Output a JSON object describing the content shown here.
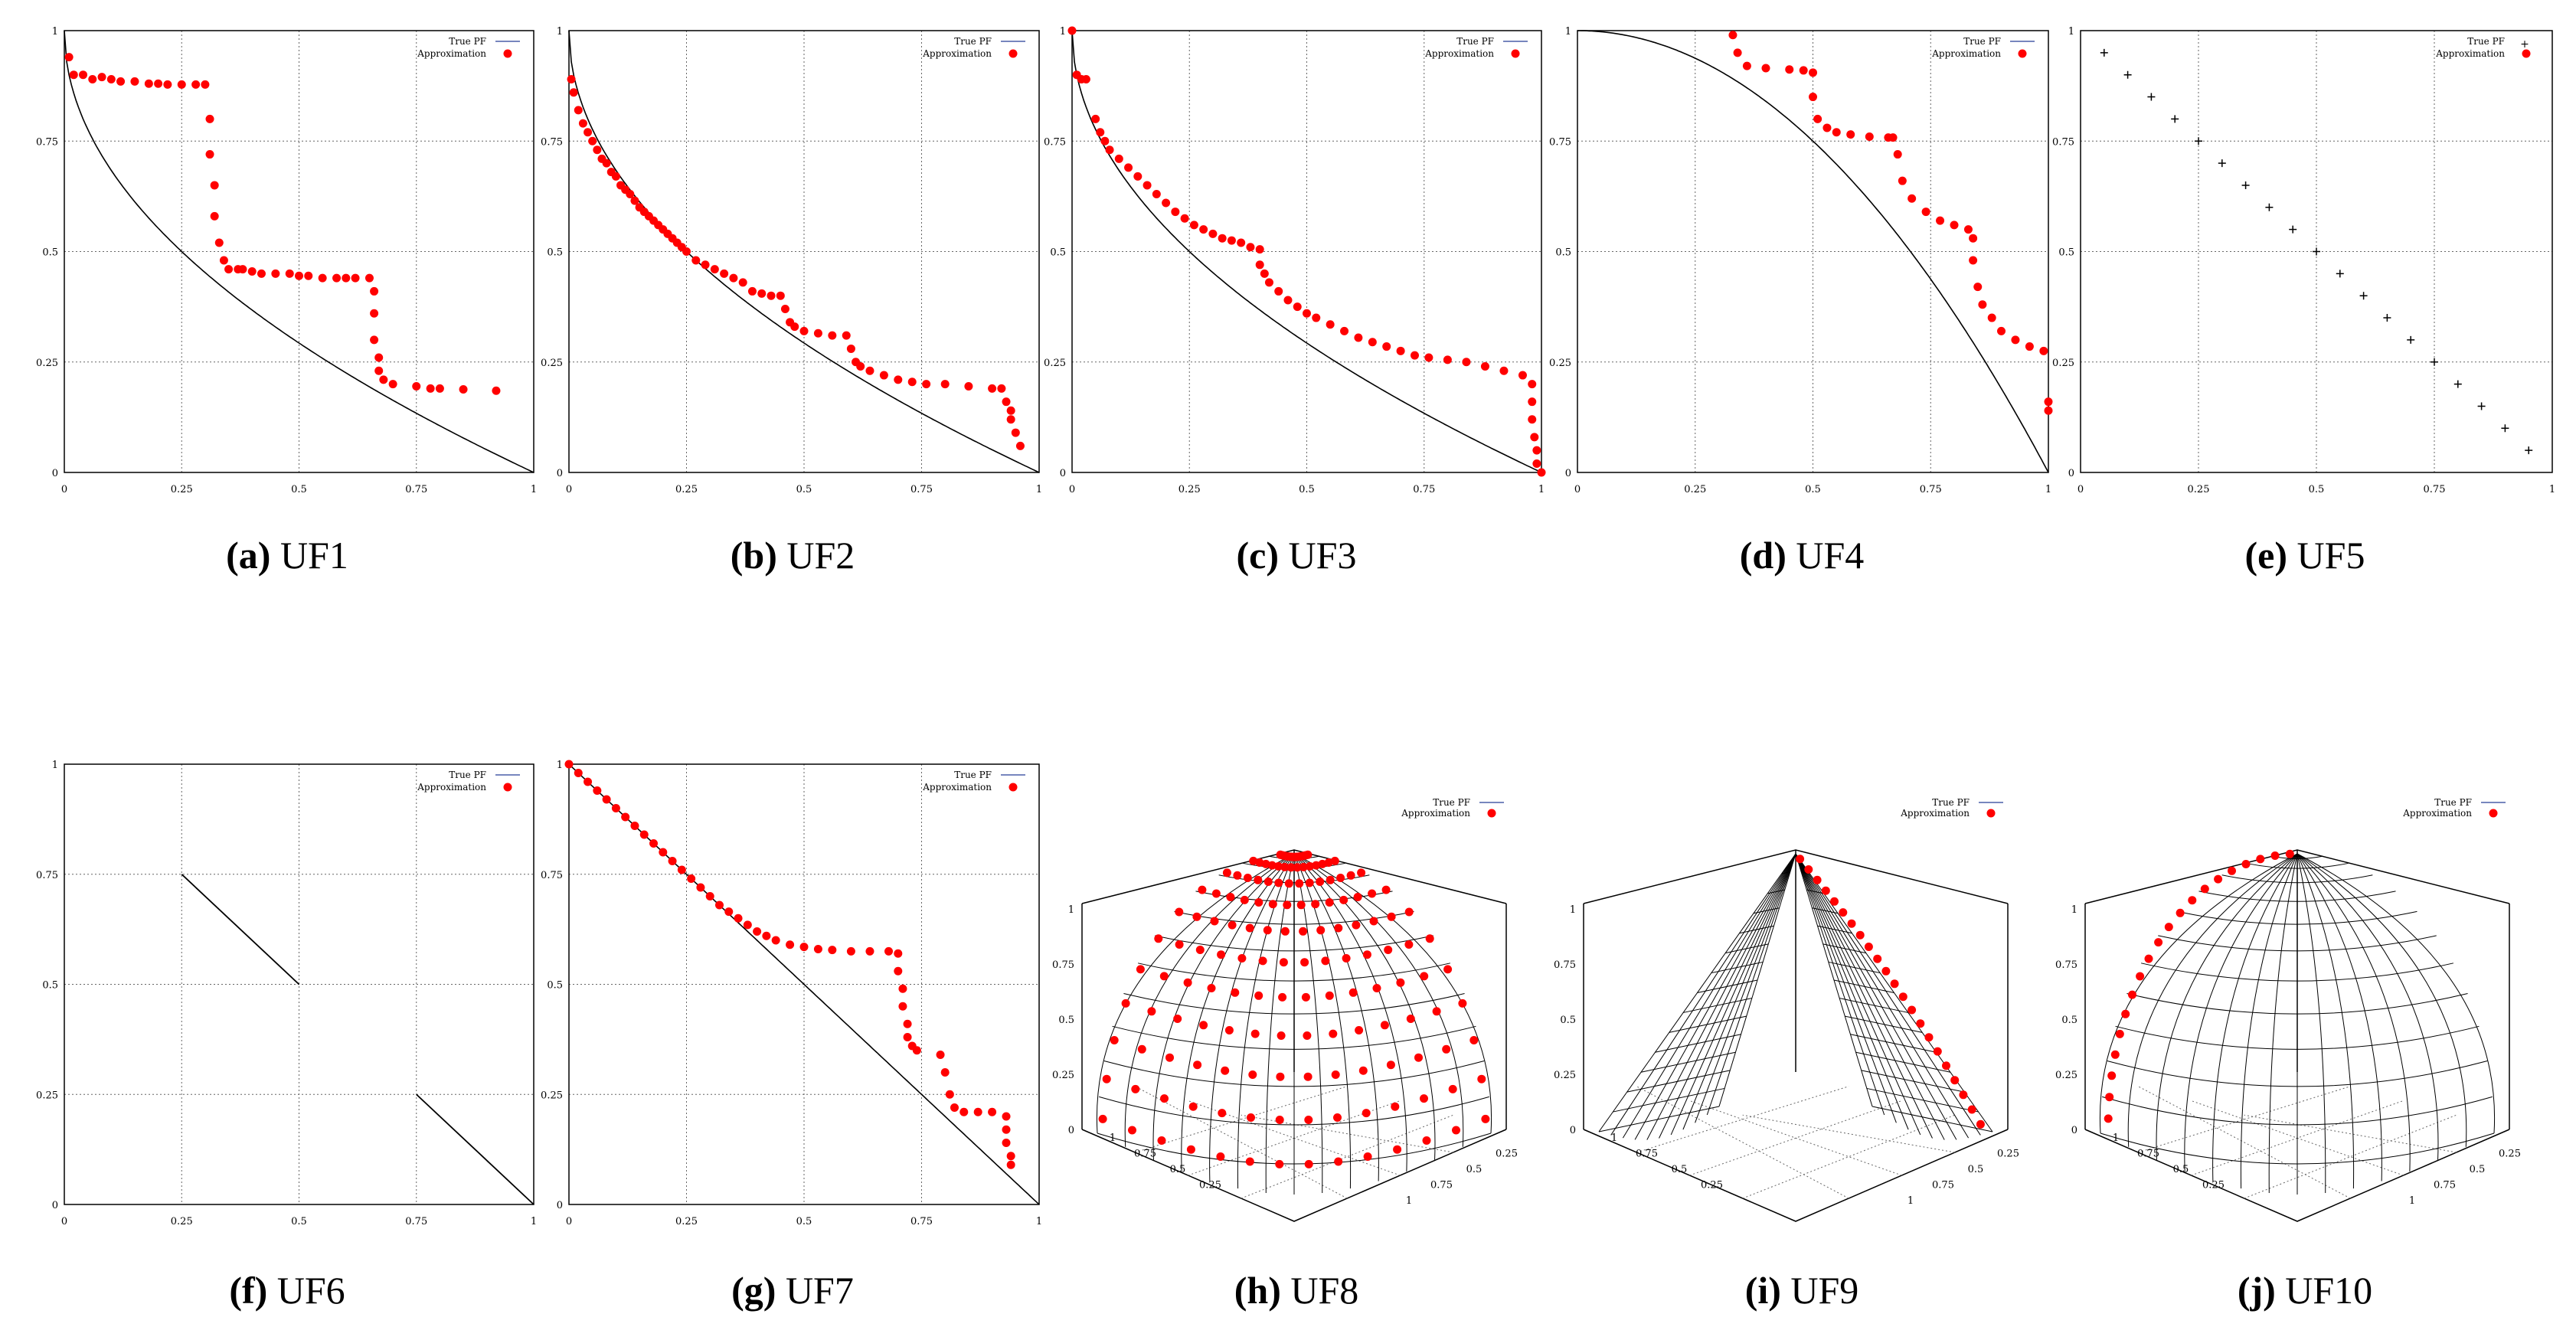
{
  "legend": {
    "true_pf": "True PF",
    "approximation": "Approximation"
  },
  "colors": {
    "true_pf": "#000000",
    "approximation": "#ff0000",
    "grid": "#666666",
    "legend_line": "#4a5ea8"
  },
  "chart_data": [
    {
      "id": "uf1",
      "type": "line+scatter",
      "caption_label": "(a)",
      "caption_name": "UF1",
      "xlim": [
        0,
        1
      ],
      "ylim": [
        0,
        1
      ],
      "xticks": [
        "0",
        "0.25",
        "0.5",
        "0.75",
        "1"
      ],
      "yticks": [
        "0",
        "0.25",
        "0.5",
        "0.75",
        "1"
      ],
      "legend_position": "top-right",
      "grid": true,
      "true_pf": "convex_sqrt",
      "approximation": [
        [
          0.01,
          0.94
        ],
        [
          0.02,
          0.9
        ],
        [
          0.04,
          0.9
        ],
        [
          0.06,
          0.89
        ],
        [
          0.08,
          0.895
        ],
        [
          0.1,
          0.89
        ],
        [
          0.12,
          0.885
        ],
        [
          0.15,
          0.885
        ],
        [
          0.18,
          0.88
        ],
        [
          0.2,
          0.88
        ],
        [
          0.22,
          0.878
        ],
        [
          0.25,
          0.878
        ],
        [
          0.28,
          0.878
        ],
        [
          0.3,
          0.878
        ],
        [
          0.31,
          0.8
        ],
        [
          0.31,
          0.72
        ],
        [
          0.32,
          0.65
        ],
        [
          0.32,
          0.58
        ],
        [
          0.33,
          0.52
        ],
        [
          0.34,
          0.48
        ],
        [
          0.35,
          0.46
        ],
        [
          0.37,
          0.46
        ],
        [
          0.38,
          0.46
        ],
        [
          0.4,
          0.455
        ],
        [
          0.42,
          0.45
        ],
        [
          0.45,
          0.45
        ],
        [
          0.48,
          0.45
        ],
        [
          0.5,
          0.445
        ],
        [
          0.52,
          0.445
        ],
        [
          0.55,
          0.44
        ],
        [
          0.58,
          0.44
        ],
        [
          0.6,
          0.44
        ],
        [
          0.62,
          0.44
        ],
        [
          0.65,
          0.44
        ],
        [
          0.66,
          0.41
        ],
        [
          0.66,
          0.36
        ],
        [
          0.66,
          0.3
        ],
        [
          0.67,
          0.26
        ],
        [
          0.67,
          0.23
        ],
        [
          0.68,
          0.21
        ],
        [
          0.7,
          0.2
        ],
        [
          0.75,
          0.195
        ],
        [
          0.78,
          0.19
        ],
        [
          0.8,
          0.19
        ],
        [
          0.85,
          0.188
        ],
        [
          0.92,
          0.185
        ]
      ],
      "approximation_marker": "dot"
    },
    {
      "id": "uf2",
      "type": "line+scatter",
      "caption_label": "(b)",
      "caption_name": "UF2",
      "xlim": [
        0,
        1
      ],
      "ylim": [
        0,
        1
      ],
      "xticks": [
        "0",
        "0.25",
        "0.5",
        "0.75",
        "1"
      ],
      "yticks": [
        "0",
        "0.25",
        "0.5",
        "0.75",
        "1"
      ],
      "legend_position": "top-right",
      "grid": true,
      "true_pf": "convex_sqrt",
      "approximation": [
        [
          0.005,
          0.89
        ],
        [
          0.01,
          0.86
        ],
        [
          0.02,
          0.82
        ],
        [
          0.03,
          0.79
        ],
        [
          0.04,
          0.77
        ],
        [
          0.05,
          0.75
        ],
        [
          0.06,
          0.73
        ],
        [
          0.07,
          0.71
        ],
        [
          0.08,
          0.7
        ],
        [
          0.09,
          0.68
        ],
        [
          0.1,
          0.67
        ],
        [
          0.11,
          0.65
        ],
        [
          0.12,
          0.64
        ],
        [
          0.13,
          0.63
        ],
        [
          0.14,
          0.615
        ],
        [
          0.15,
          0.6
        ],
        [
          0.16,
          0.59
        ],
        [
          0.17,
          0.58
        ],
        [
          0.18,
          0.57
        ],
        [
          0.19,
          0.56
        ],
        [
          0.2,
          0.55
        ],
        [
          0.21,
          0.54
        ],
        [
          0.22,
          0.53
        ],
        [
          0.23,
          0.52
        ],
        [
          0.24,
          0.51
        ],
        [
          0.25,
          0.5
        ],
        [
          0.27,
          0.48
        ],
        [
          0.29,
          0.47
        ],
        [
          0.31,
          0.46
        ],
        [
          0.33,
          0.45
        ],
        [
          0.35,
          0.44
        ],
        [
          0.37,
          0.43
        ],
        [
          0.39,
          0.41
        ],
        [
          0.41,
          0.405
        ],
        [
          0.43,
          0.4
        ],
        [
          0.45,
          0.4
        ],
        [
          0.46,
          0.37
        ],
        [
          0.47,
          0.34
        ],
        [
          0.48,
          0.33
        ],
        [
          0.5,
          0.32
        ],
        [
          0.53,
          0.315
        ],
        [
          0.56,
          0.31
        ],
        [
          0.59,
          0.31
        ],
        [
          0.6,
          0.28
        ],
        [
          0.61,
          0.25
        ],
        [
          0.62,
          0.24
        ],
        [
          0.64,
          0.23
        ],
        [
          0.67,
          0.22
        ],
        [
          0.7,
          0.21
        ],
        [
          0.73,
          0.205
        ],
        [
          0.76,
          0.2
        ],
        [
          0.8,
          0.2
        ],
        [
          0.85,
          0.195
        ],
        [
          0.9,
          0.19
        ],
        [
          0.92,
          0.19
        ],
        [
          0.93,
          0.16
        ],
        [
          0.94,
          0.14
        ],
        [
          0.94,
          0.12
        ],
        [
          0.95,
          0.09
        ],
        [
          0.96,
          0.06
        ]
      ],
      "approximation_marker": "dot"
    },
    {
      "id": "uf3",
      "type": "line+scatter",
      "caption_label": "(c)",
      "caption_name": "UF3",
      "xlim": [
        0,
        1
      ],
      "ylim": [
        0,
        1
      ],
      "xticks": [
        "0",
        "0.25",
        "0.5",
        "0.75",
        "1"
      ],
      "yticks": [
        "0",
        "0.25",
        "0.5",
        "0.75",
        "1"
      ],
      "legend_position": "top-right",
      "grid": true,
      "true_pf": "convex_sqrt",
      "approximation": [
        [
          0.0,
          1.0
        ],
        [
          0.01,
          0.9
        ],
        [
          0.02,
          0.89
        ],
        [
          0.03,
          0.89
        ],
        [
          0.05,
          0.8
        ],
        [
          0.06,
          0.77
        ],
        [
          0.07,
          0.75
        ],
        [
          0.08,
          0.73
        ],
        [
          0.1,
          0.71
        ],
        [
          0.12,
          0.69
        ],
        [
          0.14,
          0.67
        ],
        [
          0.16,
          0.65
        ],
        [
          0.18,
          0.63
        ],
        [
          0.2,
          0.61
        ],
        [
          0.22,
          0.59
        ],
        [
          0.24,
          0.575
        ],
        [
          0.26,
          0.56
        ],
        [
          0.28,
          0.55
        ],
        [
          0.3,
          0.54
        ],
        [
          0.32,
          0.53
        ],
        [
          0.34,
          0.525
        ],
        [
          0.36,
          0.52
        ],
        [
          0.38,
          0.51
        ],
        [
          0.4,
          0.505
        ],
        [
          0.4,
          0.47
        ],
        [
          0.41,
          0.45
        ],
        [
          0.42,
          0.43
        ],
        [
          0.44,
          0.41
        ],
        [
          0.46,
          0.39
        ],
        [
          0.48,
          0.375
        ],
        [
          0.5,
          0.36
        ],
        [
          0.52,
          0.35
        ],
        [
          0.55,
          0.335
        ],
        [
          0.58,
          0.32
        ],
        [
          0.61,
          0.305
        ],
        [
          0.64,
          0.295
        ],
        [
          0.67,
          0.285
        ],
        [
          0.7,
          0.275
        ],
        [
          0.73,
          0.265
        ],
        [
          0.76,
          0.26
        ],
        [
          0.8,
          0.255
        ],
        [
          0.84,
          0.25
        ],
        [
          0.88,
          0.24
        ],
        [
          0.92,
          0.23
        ],
        [
          0.96,
          0.22
        ],
        [
          0.98,
          0.2
        ],
        [
          0.98,
          0.16
        ],
        [
          0.98,
          0.12
        ],
        [
          0.985,
          0.08
        ],
        [
          0.99,
          0.05
        ],
        [
          0.99,
          0.02
        ],
        [
          1.0,
          0.0
        ]
      ],
      "approximation_marker": "dot"
    },
    {
      "id": "uf4",
      "type": "line+scatter",
      "caption_label": "(d)",
      "caption_name": "UF4",
      "xlim": [
        0,
        1
      ],
      "ylim": [
        0,
        1
      ],
      "xticks": [
        "0",
        "0.25",
        "0.5",
        "0.75",
        "1"
      ],
      "yticks": [
        "0",
        "0.25",
        "0.5",
        "0.75",
        "1"
      ],
      "legend_position": "top-right",
      "grid": true,
      "true_pf": "concave",
      "approximation": [
        [
          0.33,
          0.99
        ],
        [
          0.34,
          0.95
        ],
        [
          0.36,
          0.92
        ],
        [
          0.4,
          0.915
        ],
        [
          0.45,
          0.912
        ],
        [
          0.48,
          0.91
        ],
        [
          0.5,
          0.905
        ],
        [
          0.5,
          0.85
        ],
        [
          0.51,
          0.8
        ],
        [
          0.53,
          0.78
        ],
        [
          0.55,
          0.77
        ],
        [
          0.58,
          0.765
        ],
        [
          0.62,
          0.76
        ],
        [
          0.66,
          0.758
        ],
        [
          0.67,
          0.758
        ],
        [
          0.68,
          0.72
        ],
        [
          0.69,
          0.66
        ],
        [
          0.71,
          0.62
        ],
        [
          0.74,
          0.59
        ],
        [
          0.77,
          0.57
        ],
        [
          0.8,
          0.56
        ],
        [
          0.83,
          0.55
        ],
        [
          0.84,
          0.53
        ],
        [
          0.84,
          0.48
        ],
        [
          0.85,
          0.42
        ],
        [
          0.86,
          0.38
        ],
        [
          0.88,
          0.35
        ],
        [
          0.9,
          0.32
        ],
        [
          0.93,
          0.3
        ],
        [
          0.96,
          0.285
        ],
        [
          0.99,
          0.275
        ],
        [
          1.0,
          0.16
        ],
        [
          1.0,
          0.14
        ]
      ],
      "approximation_marker": "dot"
    },
    {
      "id": "uf5",
      "type": "scatter",
      "caption_label": "(e)",
      "caption_name": "UF5",
      "xlim": [
        0,
        1
      ],
      "ylim": [
        0,
        1
      ],
      "xticks": [
        "0",
        "0.25",
        "0.5",
        "0.75",
        "1"
      ],
      "yticks": [
        "0",
        "0.25",
        "0.5",
        "0.75",
        "1"
      ],
      "legend_position": "top-right",
      "grid": true,
      "true_pf": "discrete_points",
      "true_pf_points": [
        [
          0.05,
          0.95
        ],
        [
          0.1,
          0.9
        ],
        [
          0.15,
          0.85
        ],
        [
          0.2,
          0.8
        ],
        [
          0.25,
          0.75
        ],
        [
          0.3,
          0.7
        ],
        [
          0.35,
          0.65
        ],
        [
          0.4,
          0.6
        ],
        [
          0.45,
          0.55
        ],
        [
          0.5,
          0.5
        ],
        [
          0.55,
          0.45
        ],
        [
          0.6,
          0.4
        ],
        [
          0.65,
          0.35
        ],
        [
          0.7,
          0.3
        ],
        [
          0.75,
          0.25
        ],
        [
          0.8,
          0.2
        ],
        [
          0.85,
          0.15
        ],
        [
          0.9,
          0.1
        ],
        [
          0.95,
          0.05
        ]
      ],
      "approximation": [],
      "approximation_marker": "dot"
    },
    {
      "id": "uf6",
      "type": "line+scatter",
      "caption_label": "(f)",
      "caption_name": "UF6",
      "xlim": [
        0,
        1
      ],
      "ylim": [
        0,
        1
      ],
      "xticks": [
        "0",
        "0.25",
        "0.5",
        "0.75",
        "1"
      ],
      "yticks": [
        "0",
        "0.25",
        "0.5",
        "0.75",
        "1"
      ],
      "legend_position": "top-right",
      "grid": true,
      "true_pf": "segments",
      "true_pf_segments": [
        [
          [
            0.25,
            0.75
          ],
          [
            0.5,
            0.5
          ]
        ],
        [
          [
            0.75,
            0.25
          ],
          [
            1.0,
            0.0
          ]
        ]
      ],
      "approximation": [],
      "approximation_marker": "dot"
    },
    {
      "id": "uf7",
      "type": "line+scatter",
      "caption_label": "(g)",
      "caption_name": "UF7",
      "xlim": [
        0,
        1
      ],
      "ylim": [
        0,
        1
      ],
      "xticks": [
        "0",
        "0.25",
        "0.5",
        "0.75",
        "1"
      ],
      "yticks": [
        "0",
        "0.25",
        "0.5",
        "0.75",
        "1"
      ],
      "legend_position": "top-right",
      "grid": true,
      "true_pf": "linear",
      "approximation": [
        [
          0.0,
          1.0
        ],
        [
          0.02,
          0.98
        ],
        [
          0.04,
          0.96
        ],
        [
          0.06,
          0.94
        ],
        [
          0.08,
          0.92
        ],
        [
          0.1,
          0.9
        ],
        [
          0.12,
          0.88
        ],
        [
          0.14,
          0.86
        ],
        [
          0.16,
          0.84
        ],
        [
          0.18,
          0.82
        ],
        [
          0.2,
          0.8
        ],
        [
          0.22,
          0.78
        ],
        [
          0.24,
          0.76
        ],
        [
          0.26,
          0.74
        ],
        [
          0.28,
          0.72
        ],
        [
          0.3,
          0.7
        ],
        [
          0.32,
          0.68
        ],
        [
          0.34,
          0.665
        ],
        [
          0.36,
          0.65
        ],
        [
          0.38,
          0.635
        ],
        [
          0.4,
          0.62
        ],
        [
          0.42,
          0.61
        ],
        [
          0.44,
          0.6
        ],
        [
          0.47,
          0.59
        ],
        [
          0.5,
          0.585
        ],
        [
          0.53,
          0.58
        ],
        [
          0.56,
          0.578
        ],
        [
          0.6,
          0.575
        ],
        [
          0.64,
          0.575
        ],
        [
          0.68,
          0.575
        ],
        [
          0.7,
          0.57
        ],
        [
          0.7,
          0.53
        ],
        [
          0.71,
          0.49
        ],
        [
          0.71,
          0.45
        ],
        [
          0.72,
          0.41
        ],
        [
          0.72,
          0.38
        ],
        [
          0.73,
          0.36
        ],
        [
          0.74,
          0.35
        ],
        [
          0.79,
          0.34
        ],
        [
          0.8,
          0.3
        ],
        [
          0.81,
          0.25
        ],
        [
          0.82,
          0.22
        ],
        [
          0.84,
          0.21
        ],
        [
          0.87,
          0.21
        ],
        [
          0.9,
          0.21
        ],
        [
          0.93,
          0.2
        ],
        [
          0.93,
          0.17
        ],
        [
          0.93,
          0.14
        ],
        [
          0.94,
          0.11
        ],
        [
          0.94,
          0.09
        ]
      ],
      "approximation_marker": "dot"
    },
    {
      "id": "uf8",
      "type": "surface3d",
      "caption_label": "(h)",
      "caption_name": "UF8",
      "shape": "sphere",
      "zticks": [
        "0",
        "0.25",
        "0.5",
        "0.75",
        "1"
      ],
      "xticks": [
        "1",
        "0.75",
        "0.5",
        "0.25"
      ],
      "yticks": [
        "0.25",
        "0.5",
        "0.75",
        "1"
      ],
      "legend_position": "top-right"
    },
    {
      "id": "uf9",
      "type": "surface3d",
      "caption_label": "(i)",
      "caption_name": "UF9",
      "shape": "planes",
      "zticks": [
        "0",
        "0.25",
        "0.5",
        "0.75",
        "1"
      ],
      "xticks": [
        "1",
        "0.75",
        "0.5",
        "0.25"
      ],
      "yticks": [
        "0.25",
        "0.5",
        "0.75",
        "1"
      ],
      "legend_position": "top-right"
    },
    {
      "id": "uf10",
      "type": "surface3d",
      "caption_label": "(j)",
      "caption_name": "UF10",
      "shape": "sphere",
      "zticks": [
        "0",
        "0.25",
        "0.5",
        "0.75",
        "1"
      ],
      "xticks": [
        "1",
        "0.75",
        "0.5",
        "0.25"
      ],
      "yticks": [
        "0.25",
        "0.5",
        "0.75",
        "1"
      ],
      "legend_position": "top-right"
    }
  ]
}
